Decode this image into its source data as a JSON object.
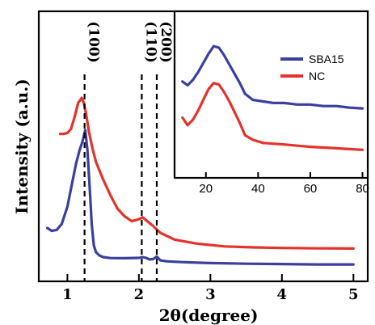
{
  "chart_data": [
    {
      "type": "line",
      "xlabel": "2θ(degree)",
      "ylabel": "Intensity (a.u.)",
      "xlim": [
        0.6,
        5.2
      ],
      "xticks": [
        "1",
        "2",
        "3",
        "4",
        "5"
      ],
      "ylim": [
        0,
        1
      ],
      "yticks": false,
      "grid": false,
      "reference_lines": [
        {
          "x": 1.24,
          "label": "(100)"
        },
        {
          "x": 2.04,
          "label": "(110)"
        },
        {
          "x": 2.25,
          "label": "(200)"
        }
      ],
      "series": [
        {
          "color": "#3b3f9e",
          "x": [
            0.72,
            0.78,
            0.85,
            0.92,
            1.0,
            1.06,
            1.12,
            1.17,
            1.21,
            1.25,
            1.28,
            1.31,
            1.34,
            1.37,
            1.4,
            1.45,
            1.5,
            1.6,
            1.8,
            2.0,
            2.05,
            2.1,
            2.15,
            2.2,
            2.25,
            2.3,
            2.4,
            2.6,
            3.0,
            3.5,
            4.0,
            4.5,
            5.0
          ],
          "values": [
            0.2,
            0.185,
            0.19,
            0.22,
            0.31,
            0.42,
            0.53,
            0.6,
            0.645,
            0.705,
            0.6,
            0.42,
            0.22,
            0.11,
            0.075,
            0.058,
            0.05,
            0.045,
            0.044,
            0.046,
            0.05,
            0.046,
            0.038,
            0.04,
            0.053,
            0.033,
            0.028,
            0.024,
            0.019,
            0.016,
            0.014,
            0.012,
            0.012
          ]
        },
        {
          "color": "#e5322d",
          "x": [
            0.9,
            0.95,
            1.0,
            1.05,
            1.1,
            1.15,
            1.2,
            1.23,
            1.26,
            1.3,
            1.35,
            1.4,
            1.5,
            1.6,
            1.7,
            1.8,
            1.9,
            2.0,
            2.05,
            2.1,
            2.2,
            2.3,
            2.5,
            2.8,
            3.2,
            3.6,
            4.0,
            4.5,
            5.0
          ],
          "values": [
            0.685,
            0.685,
            0.69,
            0.71,
            0.77,
            0.845,
            0.87,
            0.845,
            0.79,
            0.7,
            0.61,
            0.54,
            0.45,
            0.37,
            0.3,
            0.26,
            0.235,
            0.245,
            0.255,
            0.24,
            0.21,
            0.175,
            0.14,
            0.12,
            0.105,
            0.1,
            0.097,
            0.095,
            0.094
          ]
        }
      ]
    },
    {
      "type": "line",
      "xlabel": "",
      "ylabel": "",
      "xlim": [
        8,
        82
      ],
      "xticks": [
        "20",
        "40",
        "60",
        "80"
      ],
      "ylim": [
        0,
        1
      ],
      "yticks": false,
      "grid": false,
      "legend": {
        "position": "top-right"
      },
      "series": [
        {
          "name": "SBA15",
          "color": "#3b3f9e",
          "x": [
            11,
            13,
            15,
            17,
            19,
            21,
            23,
            25,
            27,
            29,
            31,
            33,
            35,
            38,
            42,
            46,
            50,
            55,
            60,
            65,
            70,
            75,
            80
          ],
          "values": [
            0.68,
            0.655,
            0.69,
            0.74,
            0.8,
            0.86,
            0.91,
            0.9,
            0.85,
            0.79,
            0.73,
            0.67,
            0.6,
            0.56,
            0.55,
            0.54,
            0.54,
            0.53,
            0.53,
            0.52,
            0.52,
            0.51,
            0.505
          ]
        },
        {
          "name": "NC",
          "color": "#e5322d",
          "x": [
            11,
            13,
            15,
            17,
            19,
            21,
            23,
            25,
            27,
            29,
            31,
            33,
            35,
            38,
            42,
            46,
            50,
            55,
            60,
            65,
            70,
            75,
            80
          ],
          "values": [
            0.445,
            0.395,
            0.43,
            0.49,
            0.56,
            0.63,
            0.67,
            0.66,
            0.61,
            0.55,
            0.48,
            0.41,
            0.33,
            0.3,
            0.28,
            0.275,
            0.27,
            0.262,
            0.255,
            0.25,
            0.245,
            0.24,
            0.235
          ]
        }
      ]
    }
  ]
}
